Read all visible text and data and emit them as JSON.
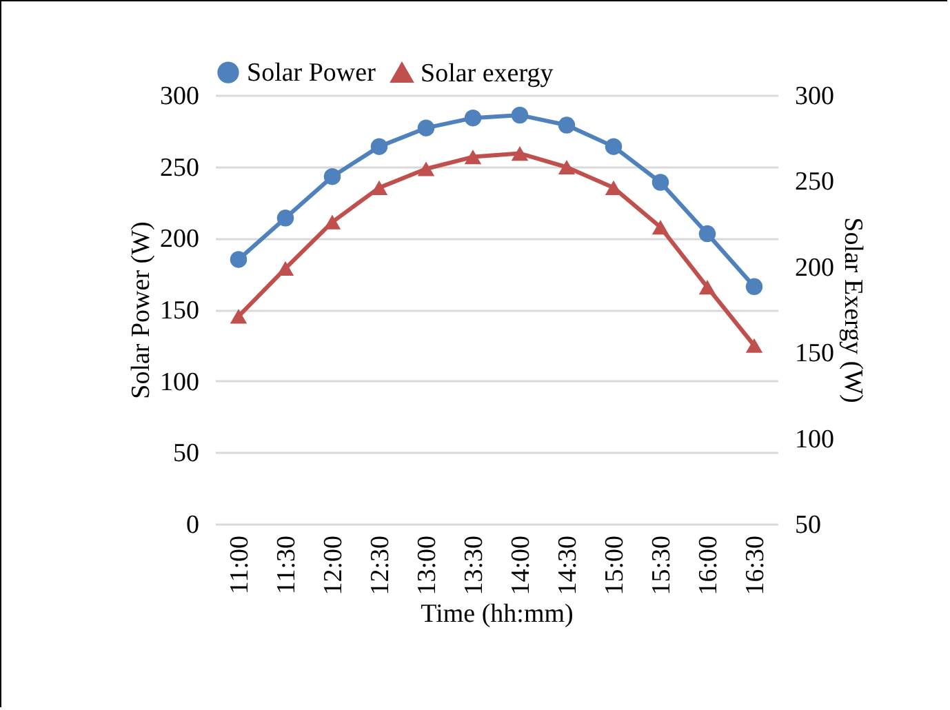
{
  "chart_data": {
    "type": "line",
    "xlabel": "Time (hh:mm)",
    "ylabel": "Solar Power (W)",
    "y2label": "Solar Exergy (W)",
    "categories": [
      "11:00",
      "11:30",
      "12:00",
      "12:30",
      "13:00",
      "13:30",
      "14:00",
      "14:30",
      "15:00",
      "15:30",
      "16:00",
      "16:30"
    ],
    "series": [
      {
        "name": "Solar Power",
        "color": "#4f81bd",
        "marker": "circle",
        "values": [
          185,
          214,
          243,
          264,
          277,
          284,
          286,
          279,
          264,
          239,
          203,
          166
        ]
      },
      {
        "name": "Solar exergy",
        "color": "#c0504d",
        "marker": "triangle",
        "axis": "y2",
        "values": [
          171,
          199,
          226,
          246,
          257,
          264,
          266,
          258,
          246,
          223,
          188,
          154
        ]
      }
    ],
    "ylim": [
      0,
      300
    ],
    "yticks": [
      0,
      50,
      100,
      150,
      200,
      250,
      300
    ],
    "y2lim": [
      50,
      300
    ],
    "y2ticks": [
      50,
      100,
      150,
      200,
      250,
      300
    ],
    "grid": "y",
    "legend": "top",
    "line_style": "solid"
  }
}
